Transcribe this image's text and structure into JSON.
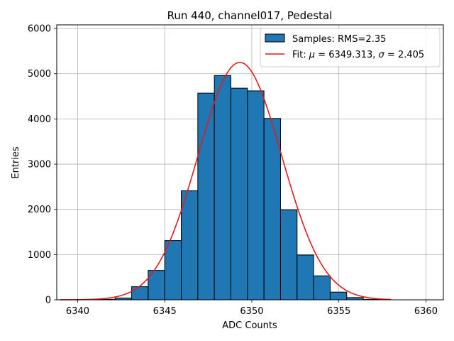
{
  "chart_data": {
    "type": "bar",
    "title": "Run 440, channel017, Pedestal",
    "xlabel": "ADC Counts",
    "ylabel": "Entries",
    "xlim": [
      6338.8,
      6361.0
    ],
    "ylim": [
      0,
      6080
    ],
    "grid": true,
    "legend_position": "top-right",
    "x_ticks": [
      6340,
      6345,
      6350,
      6355,
      6360
    ],
    "y_ticks": [
      0,
      1000,
      2000,
      3000,
      4000,
      5000,
      6000
    ],
    "bin_width": 0.95,
    "histogram": {
      "name": "Samples: RMS=2.35",
      "color": "#1f77b4",
      "edge_color": "#000000",
      "bins": [
        {
          "left": 6341.2,
          "count": 10
        },
        {
          "left": 6342.15,
          "count": 40
        },
        {
          "left": 6343.1,
          "count": 290
        },
        {
          "left": 6344.05,
          "count": 650
        },
        {
          "left": 6345.0,
          "count": 1310
        },
        {
          "left": 6345.95,
          "count": 2410
        },
        {
          "left": 6346.9,
          "count": 4570
        },
        {
          "left": 6347.85,
          "count": 4960
        },
        {
          "left": 6348.8,
          "count": 4680
        },
        {
          "left": 6349.75,
          "count": 4620
        },
        {
          "left": 6350.7,
          "count": 4010
        },
        {
          "left": 6351.65,
          "count": 1990
        },
        {
          "left": 6352.6,
          "count": 990
        },
        {
          "left": 6353.55,
          "count": 530
        },
        {
          "left": 6354.5,
          "count": 170
        },
        {
          "left": 6355.45,
          "count": 50
        },
        {
          "left": 6356.4,
          "count": 10
        }
      ]
    },
    "fit": {
      "legend_prefix": "Fit: ",
      "mu_symbol": "μ",
      "sigma_symbol": "σ",
      "mu_value": "6349.313",
      "sigma_value": "2.405",
      "mu": 6349.313,
      "sigma": 2.405,
      "amplitude": 5250,
      "x_range": [
        6339.0,
        6358.0
      ],
      "color": "#e41a1c"
    }
  }
}
